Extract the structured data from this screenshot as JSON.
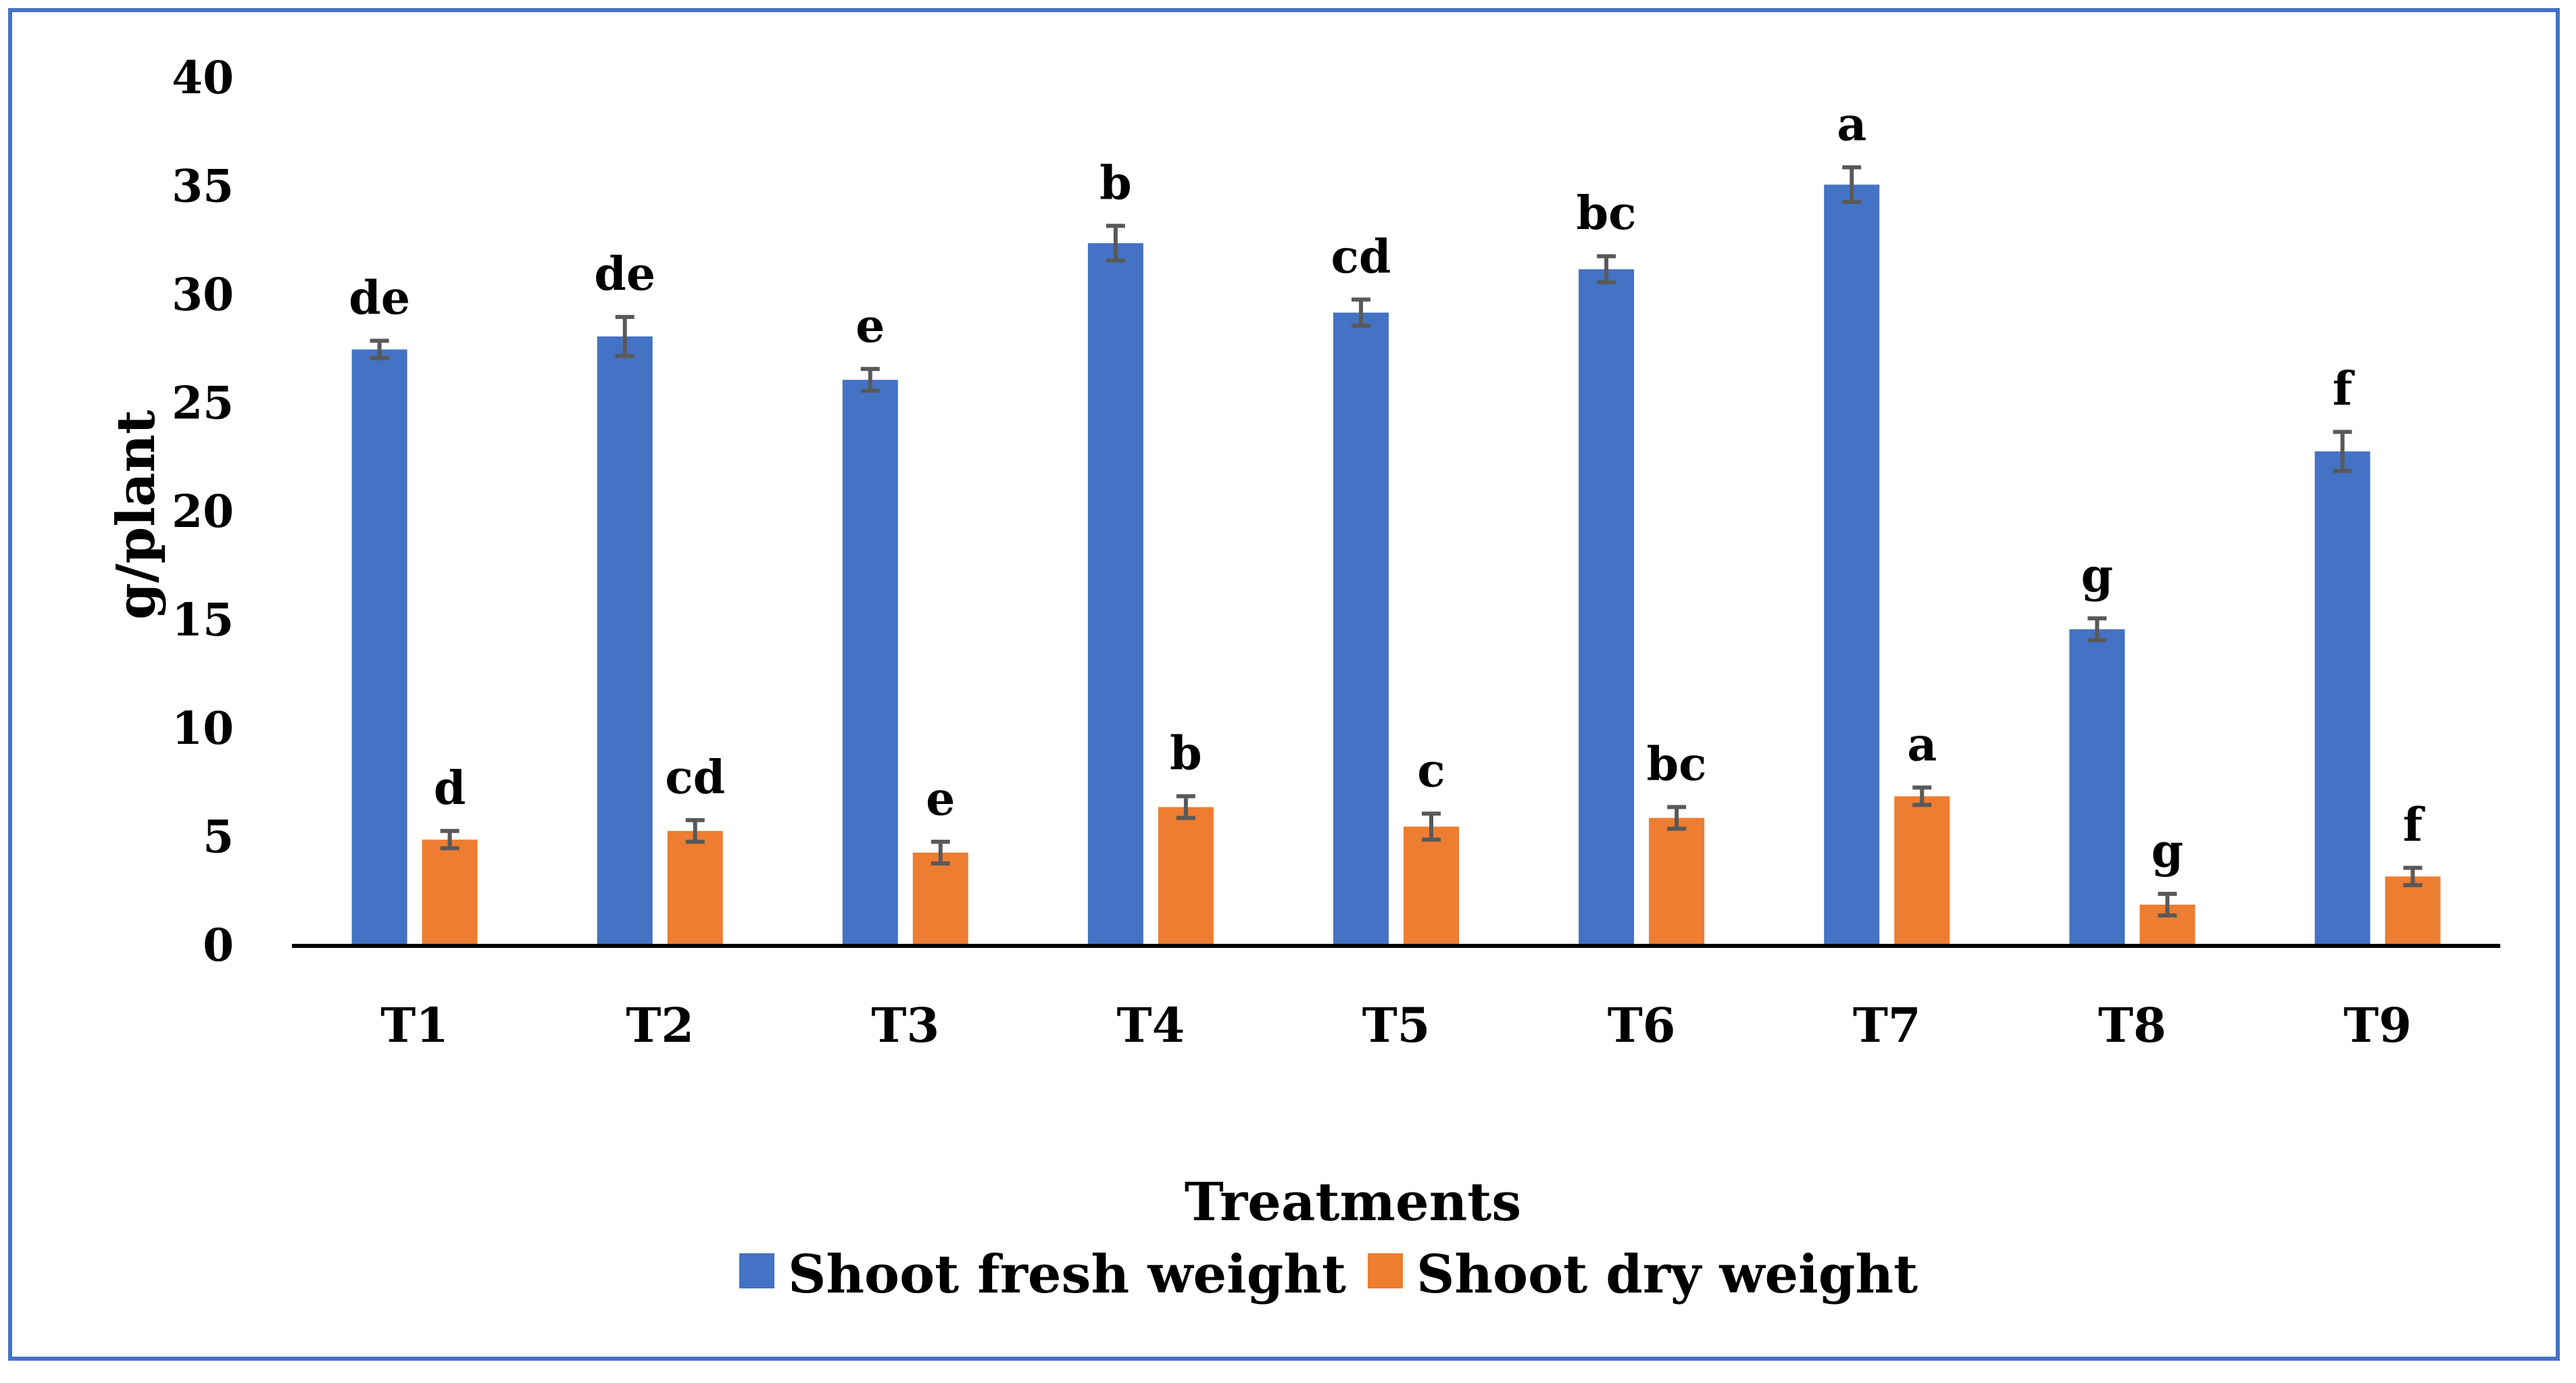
{
  "chart_data": {
    "type": "bar",
    "xlabel": "Treatments",
    "ylabel": "g/plant",
    "ylim": [
      0,
      40
    ],
    "yticks": [
      0,
      5,
      10,
      15,
      20,
      25,
      30,
      35,
      40
    ],
    "grid": false,
    "legend_position": "bottom",
    "categories": [
      "T1",
      "T2",
      "T3",
      "T4",
      "T5",
      "T6",
      "T7",
      "T8",
      "T9"
    ],
    "series": [
      {
        "name": "Shoot fresh weight",
        "color": "#4472c4",
        "values": [
          27.5,
          28.1,
          26.1,
          32.4,
          29.2,
          31.2,
          35.1,
          14.6,
          22.8
        ],
        "errors": [
          0.4,
          0.9,
          0.5,
          0.8,
          0.6,
          0.6,
          0.8,
          0.5,
          0.9
        ],
        "letters": [
          "de",
          "de",
          "e",
          "b",
          "cd",
          "bc",
          "a",
          "g",
          "f"
        ]
      },
      {
        "name": "Shoot dry weight",
        "color": "#ed7d31",
        "values": [
          4.9,
          5.3,
          4.3,
          6.4,
          5.5,
          5.9,
          6.9,
          1.9,
          3.2
        ],
        "errors": [
          0.4,
          0.5,
          0.5,
          0.5,
          0.6,
          0.5,
          0.4,
          0.5,
          0.4
        ],
        "letters": [
          "d",
          "cd",
          "e",
          "b",
          "c",
          "bc",
          "a",
          "g",
          "f"
        ]
      }
    ]
  }
}
